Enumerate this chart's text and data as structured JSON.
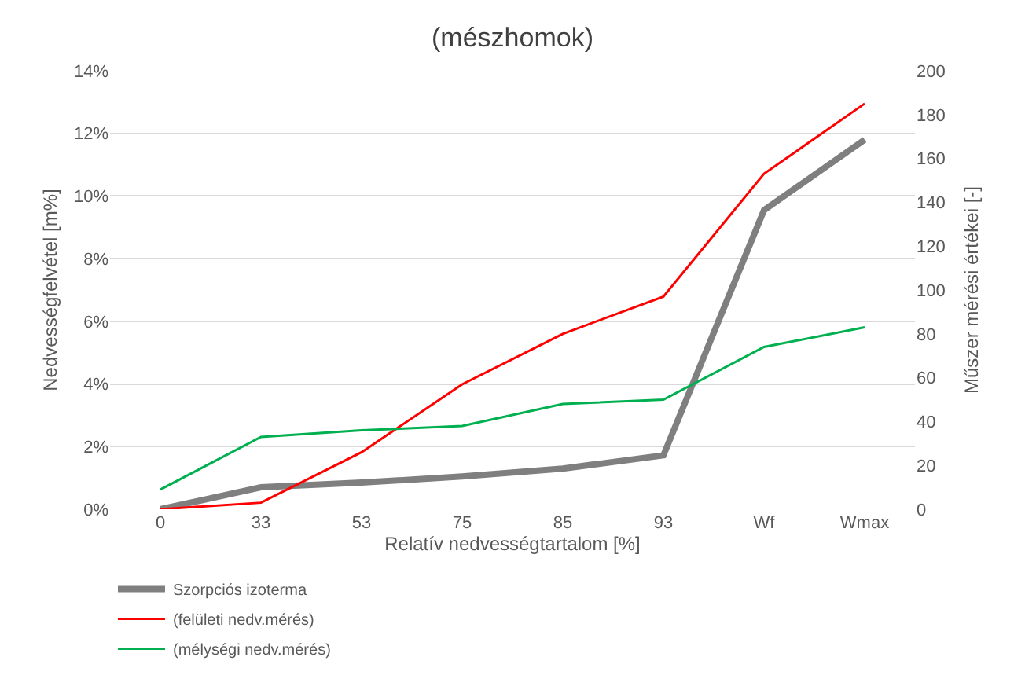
{
  "chart_data": {
    "type": "line",
    "title": "(mészhomok)",
    "xlabel": "Relatív nedvességtartalom [%]",
    "ylabel": "Nedvességfelvétel [m%]",
    "y2label": "Műszer mérési értékei [-]",
    "categories": [
      "0",
      "33",
      "53",
      "75",
      "85",
      "93",
      "Wf",
      "Wmax"
    ],
    "series": [
      {
        "name": "Szorpciós izoterma",
        "color": "#7f7f7f",
        "values": [
          0,
          0.7,
          0.85,
          1.05,
          1.3,
          1.72,
          9.55,
          11.8
        ]
      },
      {
        "name": "(felületi nedv.mérés)",
        "color": "#ff0000",
        "axis": "y2",
        "values": [
          0,
          3,
          26,
          57,
          80,
          97,
          153,
          185
        ]
      },
      {
        "name": "(mélységi nedv.mérés)",
        "color": "#00b050",
        "axis": "y2",
        "values": [
          9,
          33,
          36,
          38,
          48,
          50,
          74,
          83
        ]
      }
    ],
    "ylim": [
      0,
      14
    ],
    "yticks": [
      {
        "value": 0,
        "label": "0%"
      },
      {
        "value": 2,
        "label": "2%"
      },
      {
        "value": 4,
        "label": "4%"
      },
      {
        "value": 6,
        "label": "6%"
      },
      {
        "value": 8,
        "label": "8%"
      },
      {
        "value": 10,
        "label": "10%"
      },
      {
        "value": 12,
        "label": "12%"
      },
      {
        "value": 14,
        "label": "14%"
      }
    ],
    "y2lim": [
      0,
      200
    ],
    "y2ticks": [
      0,
      20,
      40,
      60,
      80,
      100,
      120,
      140,
      160,
      180,
      200
    ],
    "grid": "y",
    "legend": "bottom left",
    "marker": "none",
    "line_style": "solid"
  }
}
